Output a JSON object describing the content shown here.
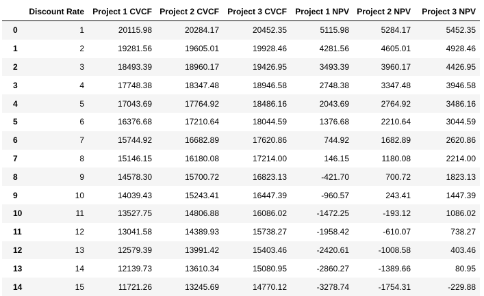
{
  "table": {
    "columns": [
      "",
      "Discount Rate",
      "Project 1 CVCF",
      "Project 2 CVCF",
      "Project 3 CVCF",
      "Project 1 NPV",
      "Project 2 NPV",
      "Project 3 NPV"
    ],
    "rows": [
      {
        "index": "0",
        "cells": [
          "1",
          "20115.98",
          "20284.17",
          "20452.35",
          "5115.98",
          "5284.17",
          "5452.35"
        ]
      },
      {
        "index": "1",
        "cells": [
          "2",
          "19281.56",
          "19605.01",
          "19928.46",
          "4281.56",
          "4605.01",
          "4928.46"
        ]
      },
      {
        "index": "2",
        "cells": [
          "3",
          "18493.39",
          "18960.17",
          "19426.95",
          "3493.39",
          "3960.17",
          "4426.95"
        ]
      },
      {
        "index": "3",
        "cells": [
          "4",
          "17748.38",
          "18347.48",
          "18946.58",
          "2748.38",
          "3347.48",
          "3946.58"
        ]
      },
      {
        "index": "4",
        "cells": [
          "5",
          "17043.69",
          "17764.92",
          "18486.16",
          "2043.69",
          "2764.92",
          "3486.16"
        ]
      },
      {
        "index": "5",
        "cells": [
          "6",
          "16376.68",
          "17210.64",
          "18044.59",
          "1376.68",
          "2210.64",
          "3044.59"
        ]
      },
      {
        "index": "6",
        "cells": [
          "7",
          "15744.92",
          "16682.89",
          "17620.86",
          "744.92",
          "1682.89",
          "2620.86"
        ]
      },
      {
        "index": "7",
        "cells": [
          "8",
          "15146.15",
          "16180.08",
          "17214.00",
          "146.15",
          "1180.08",
          "2214.00"
        ]
      },
      {
        "index": "8",
        "cells": [
          "9",
          "14578.30",
          "15700.72",
          "16823.13",
          "-421.70",
          "700.72",
          "1823.13"
        ]
      },
      {
        "index": "9",
        "cells": [
          "10",
          "14039.43",
          "15243.41",
          "16447.39",
          "-960.57",
          "243.41",
          "1447.39"
        ]
      },
      {
        "index": "10",
        "cells": [
          "11",
          "13527.75",
          "14806.88",
          "16086.02",
          "-1472.25",
          "-193.12",
          "1086.02"
        ]
      },
      {
        "index": "11",
        "cells": [
          "12",
          "13041.58",
          "14389.93",
          "15738.27",
          "-1958.42",
          "-610.07",
          "738.27"
        ]
      },
      {
        "index": "12",
        "cells": [
          "13",
          "12579.39",
          "13991.42",
          "15403.46",
          "-2420.61",
          "-1008.58",
          "403.46"
        ]
      },
      {
        "index": "13",
        "cells": [
          "14",
          "12139.73",
          "13610.34",
          "15080.95",
          "-2860.27",
          "-1389.66",
          "80.95"
        ]
      },
      {
        "index": "14",
        "cells": [
          "15",
          "11721.26",
          "13245.69",
          "14770.12",
          "-3278.74",
          "-1754.31",
          "-229.88"
        ]
      }
    ]
  }
}
